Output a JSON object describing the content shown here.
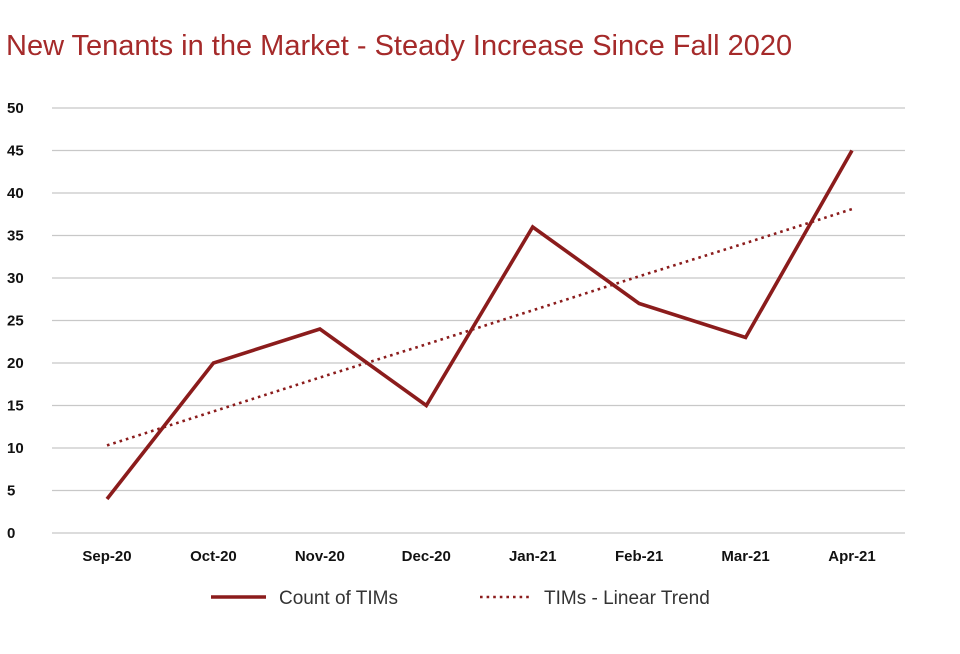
{
  "chart_data": {
    "type": "line",
    "title": "New Tenants in the Market - Steady Increase Since Fall 2020",
    "xlabel": "",
    "ylabel": "",
    "categories": [
      "Sep-20",
      "Oct-20",
      "Nov-20",
      "Dec-20",
      "Jan-21",
      "Feb-21",
      "Mar-21",
      "Apr-21"
    ],
    "series": [
      {
        "name": "Count of TIMs",
        "values": [
          4,
          20,
          24,
          15,
          36,
          27,
          23,
          45
        ],
        "style": "solid"
      },
      {
        "name": "TIMs - Linear Trend",
        "values": [
          10.3,
          14.3,
          18.3,
          22.2,
          26.2,
          30.2,
          34.1,
          38.1
        ],
        "style": "dotted"
      }
    ],
    "ylim": [
      0,
      50
    ],
    "yticks": [
      0,
      5,
      10,
      15,
      20,
      25,
      30,
      35,
      40,
      45,
      50
    ],
    "grid": true,
    "legend_position": "bottom",
    "colors": {
      "series": "#8b1c1c",
      "title": "#a52a2a",
      "grid": "#c8c8c8"
    }
  }
}
